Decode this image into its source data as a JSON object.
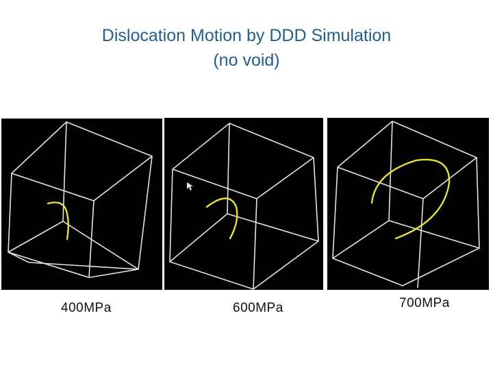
{
  "slide": {
    "title_line1": "Dislocation Motion by DDD Simulation",
    "title_line2": "(no void)"
  },
  "panels": [
    {
      "caption": "400MPa"
    },
    {
      "caption": "600MPa"
    },
    {
      "caption": "700MPa"
    }
  ],
  "colors": {
    "title": "#1f5f8b",
    "panel_background": "#000000",
    "cube_edges": "#e6e6e6",
    "dislocation": "#e8e23a"
  }
}
